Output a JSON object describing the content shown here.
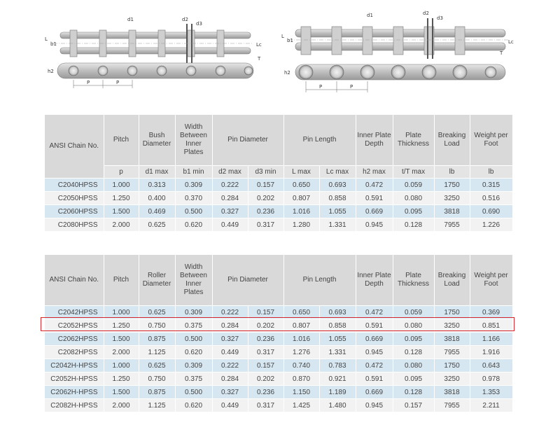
{
  "drawings": {
    "left_labels": {
      "d1": "d1",
      "d2": "d2",
      "d3": "d3",
      "L": "L",
      "b1": "b1",
      "Lc": "Lc",
      "T": "T",
      "h2": "h2",
      "p1": "P",
      "p2": "P"
    },
    "right_labels": {
      "d1": "d1",
      "d2": "d2",
      "d3": "d3",
      "L": "L",
      "b1": "b1",
      "Lc": "Lc",
      "T": "T",
      "h2": "h2",
      "p1": "P",
      "p2": "P"
    }
  },
  "header": {
    "ansi": "ANSI Chain No.",
    "pitch": "Pitch",
    "bush_diameter": "Bush Diameter",
    "roller_diameter": "Roller Diameter",
    "width_inner": "Width Between Inner Plates",
    "pin_diameter": "Pin Diameter",
    "pin_length": "Pin Length",
    "inner_plate_depth": "Inner Plate Depth",
    "plate_thickness": "Plate Thickness",
    "breaking_load": "Breaking Load",
    "weight_per_foot": "Weight per Foot"
  },
  "units": [
    "p",
    "d1 max",
    "b1 min",
    "d2 max",
    "d3 min",
    "L max",
    "Lc max",
    "h2 max",
    "t/T max",
    "lb",
    "lb"
  ],
  "table_bush": {
    "rows": [
      [
        "C2040HPSS",
        "1.000",
        "0.313",
        "0.309",
        "0.222",
        "0.157",
        "0.650",
        "0.693",
        "0.472",
        "0.059",
        "1750",
        "0.315"
      ],
      [
        "C2050HPSS",
        "1.250",
        "0.400",
        "0.370",
        "0.284",
        "0.202",
        "0.807",
        "0.858",
        "0.591",
        "0.080",
        "3250",
        "0.516"
      ],
      [
        "C2060HPSS",
        "1.500",
        "0.469",
        "0.500",
        "0.327",
        "0.236",
        "1.016",
        "1.055",
        "0.669",
        "0.095",
        "3818",
        "0.690"
      ],
      [
        "C2080HPSS",
        "2.000",
        "0.625",
        "0.620",
        "0.449",
        "0.317",
        "1.280",
        "1.331",
        "0.945",
        "0.128",
        "7955",
        "1.226"
      ]
    ]
  },
  "table_roller": {
    "rows": [
      [
        "C2042HPSS",
        "1.000",
        "0.625",
        "0.309",
        "0.222",
        "0.157",
        "0.650",
        "0.693",
        "0.472",
        "0.059",
        "1750",
        "0.369"
      ],
      [
        "C2052HPSS",
        "1.250",
        "0.750",
        "0.375",
        "0.284",
        "0.202",
        "0.807",
        "0.858",
        "0.591",
        "0.080",
        "3250",
        "0.851"
      ],
      [
        "C2062HPSS",
        "1.500",
        "0.875",
        "0.500",
        "0.327",
        "0.236",
        "1.016",
        "1.055",
        "0.669",
        "0.095",
        "3818",
        "1.166"
      ],
      [
        "C2082HPSS",
        "2.000",
        "1.125",
        "0.620",
        "0.449",
        "0.317",
        "1.276",
        "1.331",
        "0.945",
        "0.128",
        "7955",
        "1.916"
      ],
      [
        "C2042H-HPSS",
        "1.000",
        "0.625",
        "0.309",
        "0.222",
        "0.157",
        "0.740",
        "0.783",
        "0.472",
        "0.080",
        "1750",
        "0.643"
      ],
      [
        "C2052H-HPSS",
        "1.250",
        "0.750",
        "0.375",
        "0.284",
        "0.202",
        "0.870",
        "0.921",
        "0.591",
        "0.095",
        "3250",
        "0.978"
      ],
      [
        "C2062H-HPSS",
        "1.500",
        "0.875",
        "0.500",
        "0.327",
        "0.236",
        "1.150",
        "1.189",
        "0.669",
        "0.128",
        "3818",
        "1.353"
      ],
      [
        "C2082H-HPSS",
        "2.000",
        "1.125",
        "0.620",
        "0.449",
        "0.317",
        "1.425",
        "1.480",
        "0.945",
        "0.157",
        "7955",
        "2.211"
      ]
    ]
  },
  "highlight": {
    "color": "#d9272e",
    "row_label": "C2052HPSS"
  }
}
